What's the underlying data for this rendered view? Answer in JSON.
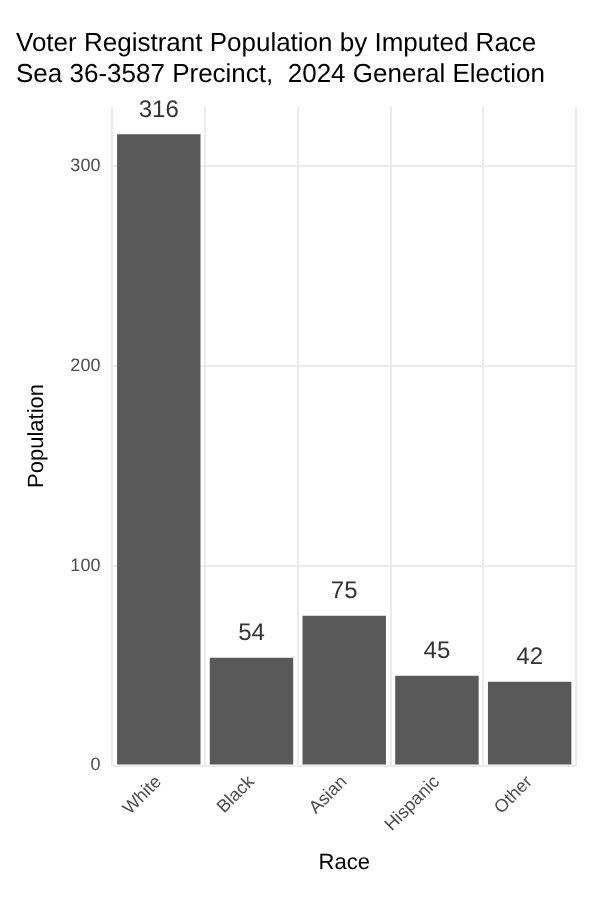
{
  "chart_data": {
    "type": "bar",
    "title": "Voter Registrant Population by Imputed Race",
    "subtitle": "Sea 36-3587 Precinct,  2024 General Election",
    "xlabel": "Race",
    "ylabel": "Population",
    "categories": [
      "White",
      "Black",
      "Asian",
      "Hispanic",
      "Other"
    ],
    "values": [
      316,
      54,
      75,
      45,
      42
    ],
    "color": "#595959",
    "ylim": [
      0,
      330
    ],
    "yticks": [
      0,
      100,
      200,
      300
    ],
    "grid": true,
    "data_labels": true
  }
}
